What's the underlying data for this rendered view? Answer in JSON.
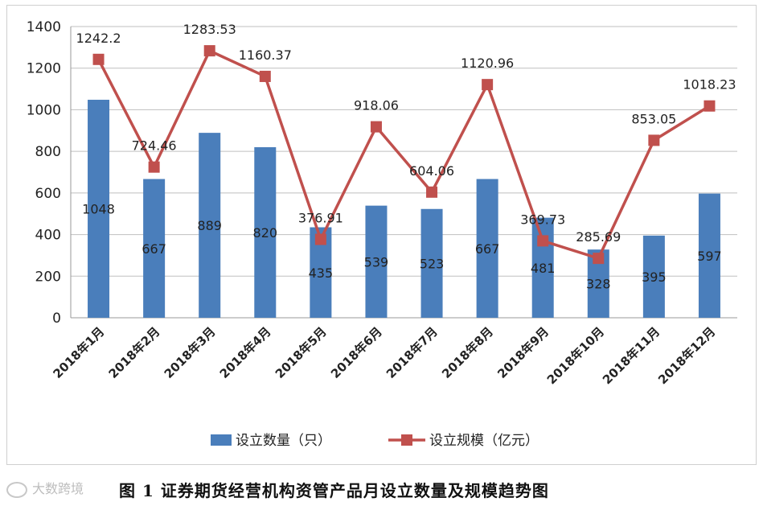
{
  "chart_data": {
    "type": "bar+line",
    "categories": [
      "2018年1月",
      "2018年2月",
      "2018年3月",
      "2018年4月",
      "2018年5月",
      "2018年6月",
      "2018年7月",
      "2018年8月",
      "2018年9月",
      "2018年10月",
      "2018年11月",
      "2018年12月"
    ],
    "series": [
      {
        "name": "设立数量（只）",
        "type": "bar",
        "color": "#4a7ebb",
        "values": [
          1048,
          667,
          889,
          820,
          435,
          539,
          523,
          667,
          481,
          328,
          395,
          597
        ]
      },
      {
        "name": "设立规模（亿元）",
        "type": "line",
        "color": "#c0504d",
        "values": [
          1242.2,
          724.46,
          1283.53,
          1160.37,
          376.91,
          918.06,
          604.06,
          1120.96,
          369.73,
          285.69,
          853.05,
          1018.23
        ]
      }
    ],
    "bar_labels": [
      "1048",
      "667",
      "889",
      "820",
      "435",
      "539",
      "523",
      "667",
      "481",
      "328",
      "395",
      "597"
    ],
    "line_labels": [
      "1242.2",
      "724.46",
      "1283.53",
      "1160.37",
      "376.91",
      "918.06",
      "604.06",
      "1120.96",
      "369.73",
      "285.69",
      "853.05",
      "1018.23"
    ],
    "yticks": [
      "0",
      "200",
      "400",
      "600",
      "800",
      "1000",
      "1200",
      "1400"
    ],
    "ylim": [
      0,
      1400
    ],
    "grid": true,
    "legend_position": "bottom"
  },
  "caption": "图 1  证券期货经营机构资管产品月设立数量及规模趋势图",
  "watermark": "大数跨境"
}
